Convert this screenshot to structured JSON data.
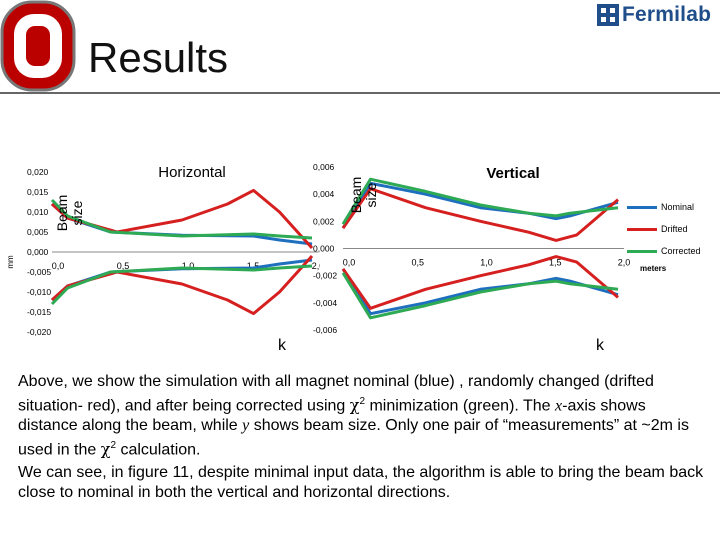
{
  "header": {
    "title": "Results",
    "brand": "Fermilab",
    "logo_icon": "block-o-logo-icon",
    "brand_icon": "fermilab-logo-icon",
    "accent": "#bb0000"
  },
  "legend": {
    "items": [
      {
        "label": "Nominal",
        "color": "#1f6fbf"
      },
      {
        "label": "Drifted",
        "color": "#d62020"
      },
      {
        "label": "Corrected",
        "color": "#2eaa55"
      }
    ],
    "units": "meters"
  },
  "chart_data": [
    {
      "type": "line",
      "title": "Horizontal",
      "xlabel": "k",
      "ylabel": "Beam size",
      "yunit": "mm",
      "xlim": [
        0,
        2.0
      ],
      "ylim": [
        -0.02,
        0.02
      ],
      "yticks": [
        "0,020",
        "0,015",
        "0,010",
        "0,005",
        "0,000",
        "-0,005",
        "-0,010",
        "-0,015",
        "-0,020"
      ],
      "xticks": [
        "0,0",
        "0,5",
        "1,0",
        "1,5",
        "2,0"
      ],
      "series": [
        {
          "name": "Nominal",
          "x": [
            0,
            0.12,
            0.45,
            1.0,
            1.55,
            1.75,
            2.0
          ],
          "upper": [
            0.012,
            0.0085,
            0.005,
            0.0042,
            0.004,
            0.003,
            0.002
          ],
          "lower": [
            -0.012,
            -0.0085,
            -0.005,
            -0.0042,
            -0.004,
            -0.003,
            -0.002
          ]
        },
        {
          "name": "Drifted",
          "x": [
            0,
            0.12,
            0.5,
            1.0,
            1.35,
            1.55,
            1.75,
            2.0
          ],
          "upper": [
            0.012,
            0.0085,
            0.005,
            0.008,
            0.012,
            0.0154,
            0.01,
            0.001
          ],
          "lower": [
            -0.012,
            -0.0085,
            -0.005,
            -0.008,
            -0.012,
            -0.0154,
            -0.01,
            -0.001
          ]
        },
        {
          "name": "Corrected",
          "x": [
            0,
            0.12,
            0.45,
            1.0,
            1.55,
            1.75,
            2.0
          ],
          "upper": [
            0.013,
            0.009,
            0.005,
            0.004,
            0.0045,
            0.004,
            0.0035
          ],
          "lower": [
            -0.013,
            -0.009,
            -0.005,
            -0.004,
            -0.0045,
            -0.004,
            -0.0035
          ]
        }
      ]
    },
    {
      "type": "line",
      "title": "Vertical",
      "xlabel": "k",
      "ylabel": "Beam size",
      "xlim": [
        0,
        2.0
      ],
      "ylim": [
        -0.006,
        0.006
      ],
      "yticks": [
        "0,006",
        "0,004",
        "0,002",
        "0,000",
        "-0,002",
        "-0,004",
        "-0,006"
      ],
      "xticks": [
        "0,0",
        "0,5",
        "1,0",
        "1,5",
        "2,0"
      ],
      "series": [
        {
          "name": "Nominal",
          "x": [
            0,
            0.2,
            0.6,
            1.0,
            1.35,
            1.55,
            1.65,
            2.0
          ],
          "upper": [
            0.0015,
            0.0048,
            0.004,
            0.003,
            0.0026,
            0.0022,
            0.0024,
            0.0034
          ],
          "lower": [
            -0.0015,
            -0.0048,
            -0.004,
            -0.003,
            -0.0026,
            -0.0022,
            -0.0024,
            -0.0034
          ]
        },
        {
          "name": "Drifted",
          "x": [
            0,
            0.2,
            0.6,
            1.0,
            1.35,
            1.55,
            1.7,
            2.0
          ],
          "upper": [
            0.0015,
            0.0044,
            0.003,
            0.002,
            0.0012,
            0.0006,
            0.001,
            0.0036
          ],
          "lower": [
            -0.0015,
            -0.0044,
            -0.003,
            -0.002,
            -0.0012,
            -0.0006,
            -0.001,
            -0.0036
          ]
        },
        {
          "name": "Corrected",
          "x": [
            0,
            0.2,
            0.6,
            1.0,
            1.35,
            1.55,
            1.65,
            2.0
          ],
          "upper": [
            0.0018,
            0.0051,
            0.0042,
            0.0032,
            0.0026,
            0.0024,
            0.0026,
            0.003
          ],
          "lower": [
            -0.0018,
            -0.0051,
            -0.0042,
            -0.0032,
            -0.0026,
            -0.0024,
            -0.0026,
            -0.003
          ]
        }
      ]
    }
  ],
  "body": {
    "p1_a": "Above,  we show the simulation with all magnet  nominal (blue) , randomly changed (drifted situation- red), and after being corrected using ",
    "chi1": "χ",
    "sq1": "2",
    "p1_b": " minimization (green). The ",
    "xvar": "x",
    "p1_c": "-axis shows distance along the beam, while  ",
    "yvar": "y",
    "p1_d": " shows beam size. Only one pair of “measurements” at ~2m is used in the ",
    "chi2": "χ",
    "sq2": "2",
    "p1_e": "  calculation.",
    "p2": "We can see, in figure 11, despite minimal input data, the algorithm is able to bring the beam back close to nominal in both the vertical and horizontal directions."
  }
}
